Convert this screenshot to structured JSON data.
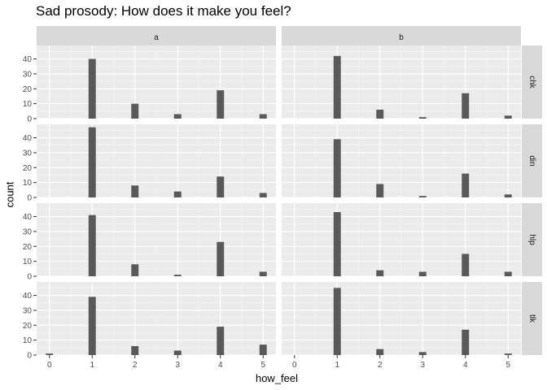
{
  "chart_data": {
    "type": "bar",
    "title": "Sad prosody: How does it make you feel?",
    "xlabel": "how_feel",
    "ylabel": "count",
    "xticks": [
      "0",
      "1",
      "2",
      "3",
      "4",
      "5"
    ],
    "yticks": [
      "0",
      "10",
      "20",
      "30",
      "40"
    ],
    "ylim": [
      0,
      49
    ],
    "xlim": [
      -0.3,
      5.3
    ],
    "grid": true,
    "facet_columns": [
      "a",
      "b"
    ],
    "facet_rows": [
      "chk",
      "din",
      "hlp",
      "tlk"
    ],
    "panels": [
      {
        "col": "a",
        "row": "chk",
        "values": {
          "1": 40,
          "2": 10,
          "3": 3,
          "4": 19,
          "5": 3
        }
      },
      {
        "col": "b",
        "row": "chk",
        "values": {
          "1": 42,
          "2": 6,
          "3": 1,
          "4": 17,
          "5": 2
        }
      },
      {
        "col": "a",
        "row": "din",
        "values": {
          "1": 47,
          "2": 8,
          "3": 4,
          "4": 14,
          "5": 3
        }
      },
      {
        "col": "b",
        "row": "din",
        "values": {
          "1": 39,
          "2": 9,
          "3": 1,
          "4": 16,
          "5": 2
        }
      },
      {
        "col": "a",
        "row": "hlp",
        "values": {
          "1": 41,
          "2": 8,
          "3": 1,
          "4": 23,
          "5": 3
        }
      },
      {
        "col": "b",
        "row": "hlp",
        "values": {
          "1": 43,
          "2": 4,
          "3": 3,
          "4": 15,
          "5": 3
        }
      },
      {
        "col": "a",
        "row": "tlk",
        "values": {
          "0": 1,
          "1": 39,
          "2": 6,
          "3": 3,
          "4": 19,
          "5": 7
        }
      },
      {
        "col": "b",
        "row": "tlk",
        "values": {
          "1": 45,
          "2": 4,
          "3": 2,
          "4": 17,
          "5": 1
        }
      }
    ]
  },
  "colors": {
    "panel_bg": "#ebebeb",
    "strip_bg": "#d9d9d9",
    "bar": "#595959",
    "grid_major": "#ffffff",
    "tick_text": "#4d4d4d"
  }
}
